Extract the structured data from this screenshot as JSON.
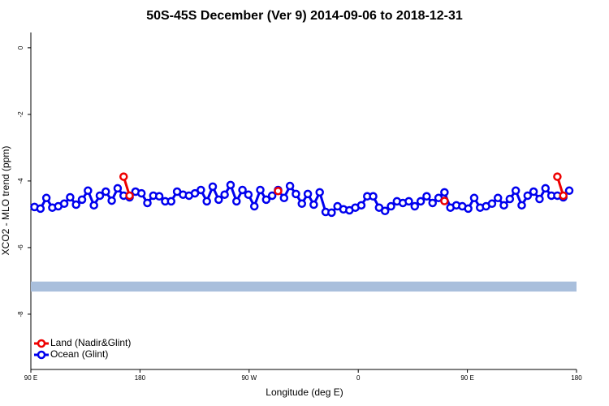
{
  "chart_data": {
    "type": "line",
    "title": "50S-45S December (Ver 9)   2014-09-06 to 2018-12-31",
    "x_label": "Longitude (deg E)",
    "y_label": "XCO2 - MLO trend (ppm)",
    "xlim": [
      90,
      540
    ],
    "xticks": [
      {
        "value": 90,
        "label": "90 E"
      },
      180,
      {
        "value": 270,
        "label": "90 W"
      },
      {
        "value": 360,
        "label": "0"
      },
      {
        "value": 450,
        "label": "90 E"
      },
      {
        "value": 540,
        "label": "180"
      }
    ],
    "ylim": [
      -9.66,
      0.46
    ],
    "yticks": [
      0,
      -2,
      -4,
      -6,
      -8
    ],
    "band": {
      "range": [
        -7.02,
        -7.32
      ],
      "color": "#a9bfdc"
    },
    "legend": "bottom-left",
    "series": [
      {
        "name": "Ocean (Glint)",
        "color": "#0000ee",
        "x": [
          93,
          97.9,
          102.8,
          107.7,
          112.6,
          117.5,
          122.4,
          127.3,
          132.2,
          137.1,
          142,
          146.9,
          151.8,
          156.7,
          161.6,
          166.5,
          171.4,
          176.3,
          181.2,
          186.1,
          191,
          195.9,
          200.8,
          205.7,
          210.6,
          215.5,
          220.4,
          225.3,
          230.2,
          235.1,
          240,
          244.9,
          249.8,
          254.7,
          259.6,
          264.5,
          269.4,
          274.3,
          279.2,
          284.1,
          289,
          293.9,
          298.8,
          303.7,
          308.6,
          313.5,
          318.4,
          323.3,
          328.2,
          333.1,
          338,
          342.9,
          347.8,
          352.7,
          357.6,
          362.5,
          367.4,
          372.3,
          377.2,
          382.1,
          387,
          391.9,
          396.8,
          401.7,
          406.6,
          411.5,
          416.4,
          421.3,
          426.2,
          431.1,
          436,
          440.9,
          445.8,
          450.7,
          455.6,
          460.5,
          465.4,
          470.3,
          475.2,
          480.1,
          485,
          489.9,
          494.8,
          499.7,
          504.6,
          509.5,
          514.4,
          519.3,
          524.2,
          529.1,
          534
        ],
        "values": [
          -4.78,
          -4.83,
          -4.51,
          -4.8,
          -4.76,
          -4.68,
          -4.49,
          -4.71,
          -4.56,
          -4.29,
          -4.73,
          -4.44,
          -4.32,
          -4.59,
          -4.22,
          -4.44,
          -4.49,
          -4.32,
          -4.37,
          -4.66,
          -4.44,
          -4.46,
          -4.61,
          -4.61,
          -4.32,
          -4.41,
          -4.44,
          -4.37,
          -4.27,
          -4.61,
          -4.17,
          -4.56,
          -4.41,
          -4.12,
          -4.61,
          -4.27,
          -4.41,
          -4.76,
          -4.27,
          -4.56,
          -4.44,
          -4.27,
          -4.51,
          -4.15,
          -4.39,
          -4.68,
          -4.39,
          -4.71,
          -4.34,
          -4.93,
          -4.95,
          -4.76,
          -4.85,
          -4.88,
          -4.8,
          -4.73,
          -4.46,
          -4.46,
          -4.8,
          -4.9,
          -4.76,
          -4.61,
          -4.66,
          -4.61,
          -4.76,
          -4.61,
          -4.46,
          -4.66,
          -4.51,
          -4.34,
          -4.8,
          -4.73,
          -4.76,
          -4.83,
          -4.51,
          -4.8,
          -4.76,
          -4.68,
          -4.51,
          -4.73,
          -4.54,
          -4.29,
          -4.73,
          -4.44,
          -4.32,
          -4.54,
          -4.22,
          -4.44,
          -4.44,
          -4.49,
          -4.29
        ]
      },
      {
        "name": "Land (Nadir&Glint)",
        "color": "#ee0000",
        "x": [
          166.5,
          171.4,
          240,
          293.9,
          400,
          431.1,
          480,
          524.2,
          529.1
        ],
        "values": [
          -3.87,
          -4.44,
          null,
          -4.3,
          null,
          -4.6,
          null,
          -3.87,
          -4.44
        ]
      }
    ]
  }
}
